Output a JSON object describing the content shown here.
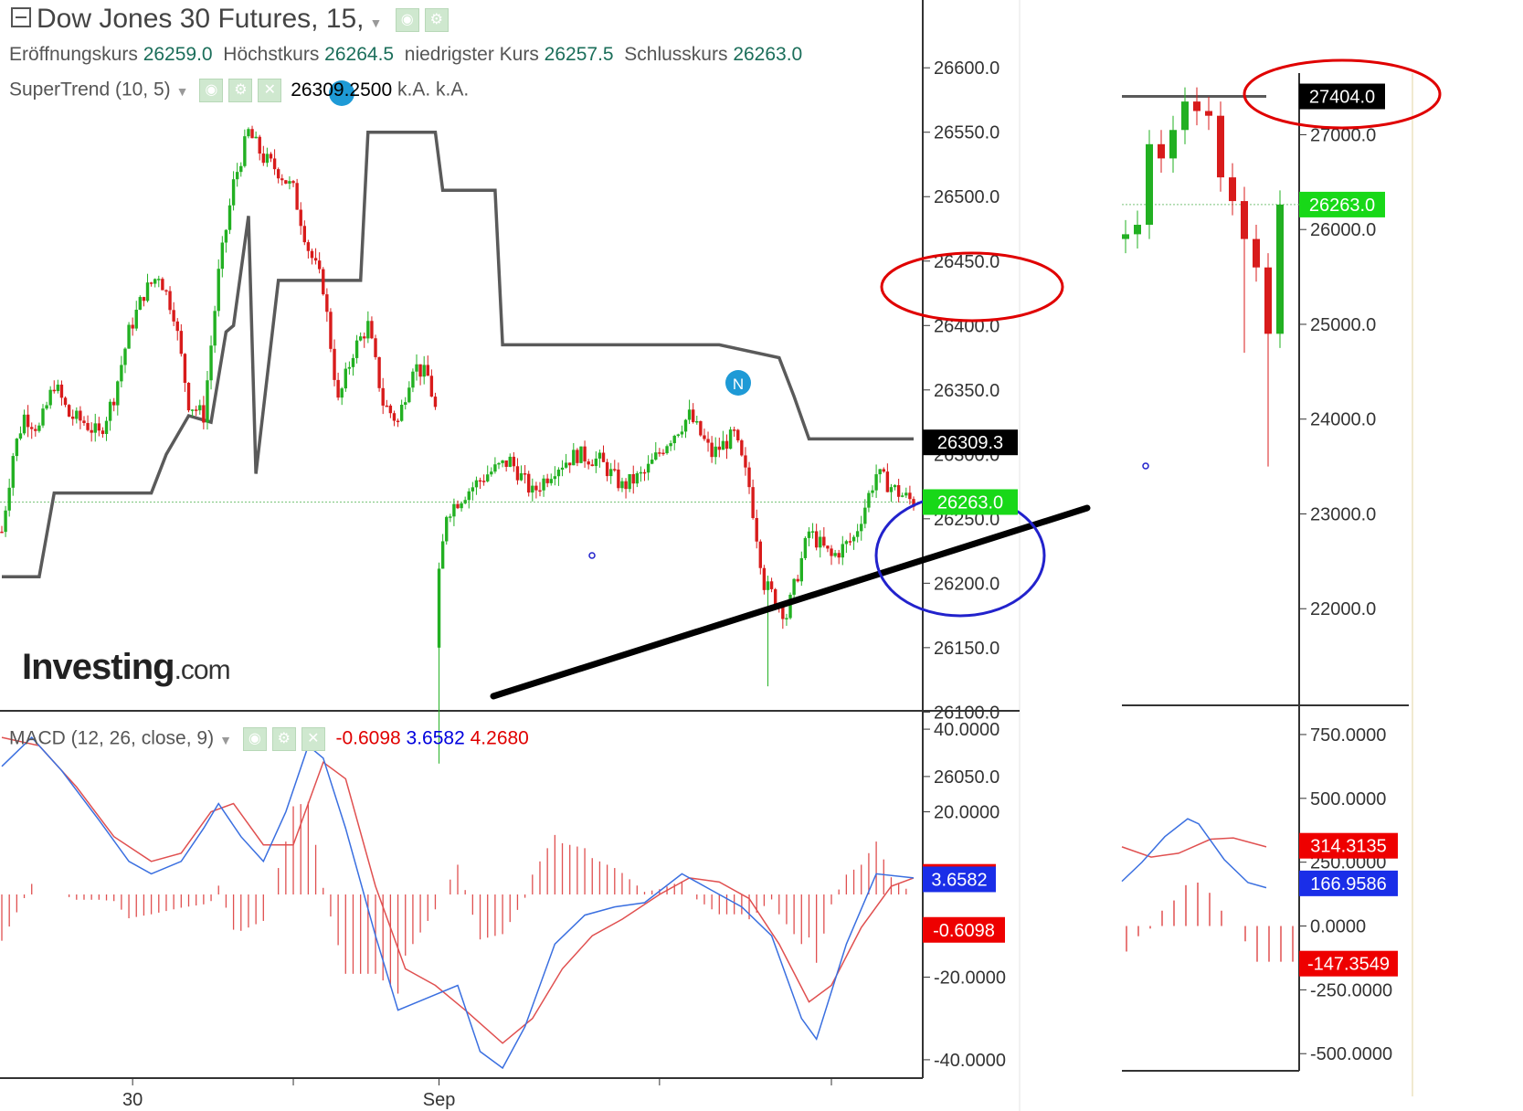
{
  "header": {
    "title": "Dow Jones 30 Futures, 15,",
    "ohlc": [
      {
        "label": "Eröffnungskurs",
        "value": "26259.0"
      },
      {
        "label": "Höchstkurs",
        "value": "26264.5"
      },
      {
        "label": "niedrigster Kurs",
        "value": "26257.5"
      },
      {
        "label": "Schlusskurs",
        "value": "26263.0"
      }
    ],
    "supertrend_label": "SuperTrend (10, 5)",
    "supertrend_value": "26309.2500",
    "supertrend_na1": "k.A.",
    "supertrend_na2": "k.A.",
    "macd_label": "MACD (12, 26, close, 9)",
    "macd_values": {
      "hist": "-0.6098",
      "macd": "3.6582",
      "signal": "4.2680"
    }
  },
  "logo": {
    "brand": "Investing",
    "suffix": ".com"
  },
  "colors": {
    "up": "#22b022",
    "down": "#d81b1b",
    "supertrend": "#5a5a5a",
    "macd": "#3a6fe0",
    "signal": "#e05050",
    "hist": "#e05050",
    "annot_red": "#e00000",
    "annot_blue": "#2222cc",
    "axis": "#333333"
  },
  "chart_data": [
    {
      "type": "line",
      "title": "Dow Jones 30 Futures, 15,",
      "y_ticks": [
        "26600.0",
        "26550.0",
        "26500.0",
        "26450.0",
        "26400.0",
        "26350.0",
        "26300.0",
        "26250.0",
        "26200.0",
        "26150.0",
        "26100.0",
        "26050.0"
      ],
      "ylim": [
        26040,
        26620
      ],
      "x_ticks": [
        "30",
        "Sep"
      ],
      "current_price": "26263.0",
      "supertrend_price": "26309.3",
      "price_path": [
        [
          0,
          26240
        ],
        [
          3,
          26300
        ],
        [
          6,
          26330
        ],
        [
          10,
          26320
        ],
        [
          14,
          26355
        ],
        [
          18,
          26330
        ],
        [
          22,
          26325
        ],
        [
          26,
          26315
        ],
        [
          30,
          26345
        ],
        [
          34,
          26395
        ],
        [
          38,
          26425
        ],
        [
          42,
          26440
        ],
        [
          46,
          26410
        ],
        [
          50,
          26340
        ],
        [
          54,
          26330
        ],
        [
          58,
          26440
        ],
        [
          62,
          26510
        ],
        [
          66,
          26550
        ],
        [
          70,
          26530
        ],
        [
          74,
          26520
        ],
        [
          78,
          26505
        ],
        [
          82,
          26460
        ],
        [
          86,
          26430
        ],
        [
          90,
          26340
        ],
        [
          94,
          26380
        ],
        [
          98,
          26400
        ],
        [
          102,
          26340
        ],
        [
          106,
          26325
        ],
        [
          110,
          26370
        ],
        [
          114,
          26360
        ],
        [
          116,
          26335
        ],
        [
          117,
          26205
        ],
        [
          119,
          26255
        ],
        [
          124,
          26270
        ],
        [
          130,
          26285
        ],
        [
          136,
          26295
        ],
        [
          142,
          26270
        ],
        [
          148,
          26290
        ],
        [
          154,
          26300
        ],
        [
          160,
          26295
        ],
        [
          166,
          26275
        ],
        [
          172,
          26285
        ],
        [
          178,
          26310
        ],
        [
          184,
          26330
        ],
        [
          190,
          26300
        ],
        [
          196,
          26315
        ],
        [
          200,
          26275
        ],
        [
          204,
          26200
        ],
        [
          210,
          26175
        ],
        [
          216,
          26240
        ],
        [
          222,
          26220
        ],
        [
          228,
          26235
        ],
        [
          234,
          26285
        ],
        [
          240,
          26270
        ],
        [
          244,
          26263
        ]
      ],
      "supertrend": [
        [
          0,
          26205
        ],
        [
          10,
          26205
        ],
        [
          14,
          26270
        ],
        [
          40,
          26270
        ],
        [
          44,
          26300
        ],
        [
          50,
          26330
        ],
        [
          56,
          26325
        ],
        [
          60,
          26395
        ],
        [
          62,
          26400
        ],
        [
          66,
          26485
        ],
        [
          68,
          26285
        ],
        [
          74,
          26435
        ],
        [
          96,
          26435
        ],
        [
          98,
          26550
        ],
        [
          116,
          26550
        ],
        [
          118,
          26505
        ],
        [
          132,
          26505
        ],
        [
          134,
          26385
        ],
        [
          192,
          26385
        ],
        [
          208,
          26375
        ],
        [
          212,
          26345
        ],
        [
          216,
          26312
        ],
        [
          244,
          26312
        ]
      ]
    },
    {
      "type": "line",
      "title": "Dow Jones 30 Futures",
      "y_ticks": [
        "27000.0",
        "26000.0",
        "25000.0",
        "24000.0",
        "23000.0",
        "22000.0"
      ],
      "ylim": [
        21000,
        27650
      ],
      "labels": {
        "high": "27404.0",
        "current": "26263.0"
      },
      "close": [
        25950,
        26050,
        26900,
        26750,
        27050,
        27350,
        27250,
        27200,
        26550,
        26300,
        25900,
        25600,
        24900,
        26263
      ]
    },
    {
      "type": "line",
      "title": "MACD (12, 26, close, 9)",
      "y_ticks": [
        "40.0000",
        "20.0000",
        "-20.0000",
        "-40.0000"
      ],
      "ylim": [
        -44,
        44
      ],
      "labels": {
        "signal": "4.2680",
        "macd": "3.6582",
        "hist": "-0.6098"
      },
      "series": [
        {
          "values": [
            [
              0,
              31
            ],
            [
              8,
              38
            ],
            [
              16,
              30
            ],
            [
              26,
              18
            ],
            [
              34,
              8
            ],
            [
              40,
              5
            ],
            [
              48,
              8
            ],
            [
              54,
              16
            ],
            [
              58,
              22
            ],
            [
              64,
              14
            ],
            [
              70,
              8
            ],
            [
              76,
              20
            ],
            [
              82,
              36
            ],
            [
              86,
              33
            ],
            [
              92,
              16
            ],
            [
              100,
              -10
            ],
            [
              106,
              -28
            ],
            [
              114,
              -25
            ],
            [
              122,
              -22
            ],
            [
              128,
              -38
            ],
            [
              134,
              -42
            ],
            [
              140,
              -32
            ],
            [
              148,
              -12
            ],
            [
              156,
              -5
            ],
            [
              164,
              -3
            ],
            [
              172,
              -2
            ],
            [
              182,
              5
            ],
            [
              190,
              1
            ],
            [
              198,
              -3
            ],
            [
              206,
              -10
            ],
            [
              214,
              -30
            ],
            [
              218,
              -35
            ],
            [
              226,
              -12
            ],
            [
              234,
              5
            ],
            [
              244,
              4
            ]
          ]
        },
        {
          "values": [
            [
              0,
              38
            ],
            [
              10,
              36
            ],
            [
              20,
              26
            ],
            [
              30,
              14
            ],
            [
              40,
              8
            ],
            [
              48,
              10
            ],
            [
              56,
              20
            ],
            [
              62,
              22
            ],
            [
              70,
              12
            ],
            [
              78,
              12
            ],
            [
              86,
              32
            ],
            [
              92,
              28
            ],
            [
              100,
              2
            ],
            [
              108,
              -18
            ],
            [
              116,
              -22
            ],
            [
              124,
              -28
            ],
            [
              134,
              -36
            ],
            [
              142,
              -30
            ],
            [
              150,
              -18
            ],
            [
              158,
              -10
            ],
            [
              166,
              -6
            ],
            [
              176,
              0
            ],
            [
              184,
              4
            ],
            [
              192,
              3
            ],
            [
              200,
              -1
            ],
            [
              208,
              -12
            ],
            [
              216,
              -26
            ],
            [
              222,
              -22
            ],
            [
              230,
              -8
            ],
            [
              238,
              2
            ],
            [
              244,
              4
            ]
          ]
        }
      ]
    },
    {
      "type": "line",
      "title": "MACD",
      "y_ticks": [
        "750.0000",
        "500.0000",
        "250.0000",
        "0.0000",
        "-250.0000",
        "-500.0000"
      ],
      "ylim": [
        -560,
        850
      ],
      "labels": {
        "signal": "314.3135",
        "macd": "166.9586",
        "hist": "-147.3549"
      }
    }
  ]
}
